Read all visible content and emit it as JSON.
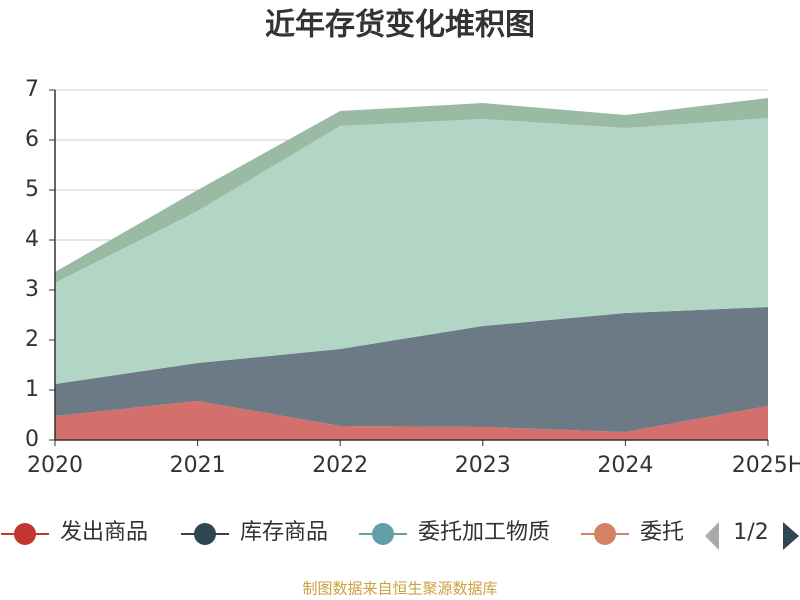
{
  "chart_data": {
    "type": "stacked_area",
    "title": "近年存货变化堆积图",
    "categories": [
      "2020",
      "2021",
      "2022",
      "2023",
      "2024",
      "2025H"
    ],
    "series": [
      {
        "name": "发出商品",
        "color": "#c23531",
        "area_color": "#d4706c",
        "values": [
          0.48,
          0.78,
          0.28,
          0.26,
          0.16,
          0.68
        ]
      },
      {
        "name": "库存商品",
        "color": "#2f4554",
        "area_color": "#6c7a85",
        "values": [
          0.64,
          0.76,
          1.54,
          2.02,
          2.38,
          1.98
        ]
      },
      {
        "name": "委托加工物质",
        "color": "#61a0a8",
        "area_color": "#b1d6c5",
        "values": [
          2.02,
          3.04,
          4.46,
          4.14,
          3.7,
          3.78
        ]
      },
      {
        "name": "委托",
        "color": "#d48265",
        "area_color": "#9bbaa3",
        "values": [
          0.22,
          0.42,
          0.3,
          0.32,
          0.26,
          0.4
        ]
      }
    ],
    "ylim": [
      0,
      7
    ],
    "yticks": [
      0,
      1,
      2,
      3,
      4,
      5,
      6,
      7
    ],
    "grid": true,
    "legend_page": "1/2",
    "source": "制图数据来自恒生聚源数据库"
  }
}
